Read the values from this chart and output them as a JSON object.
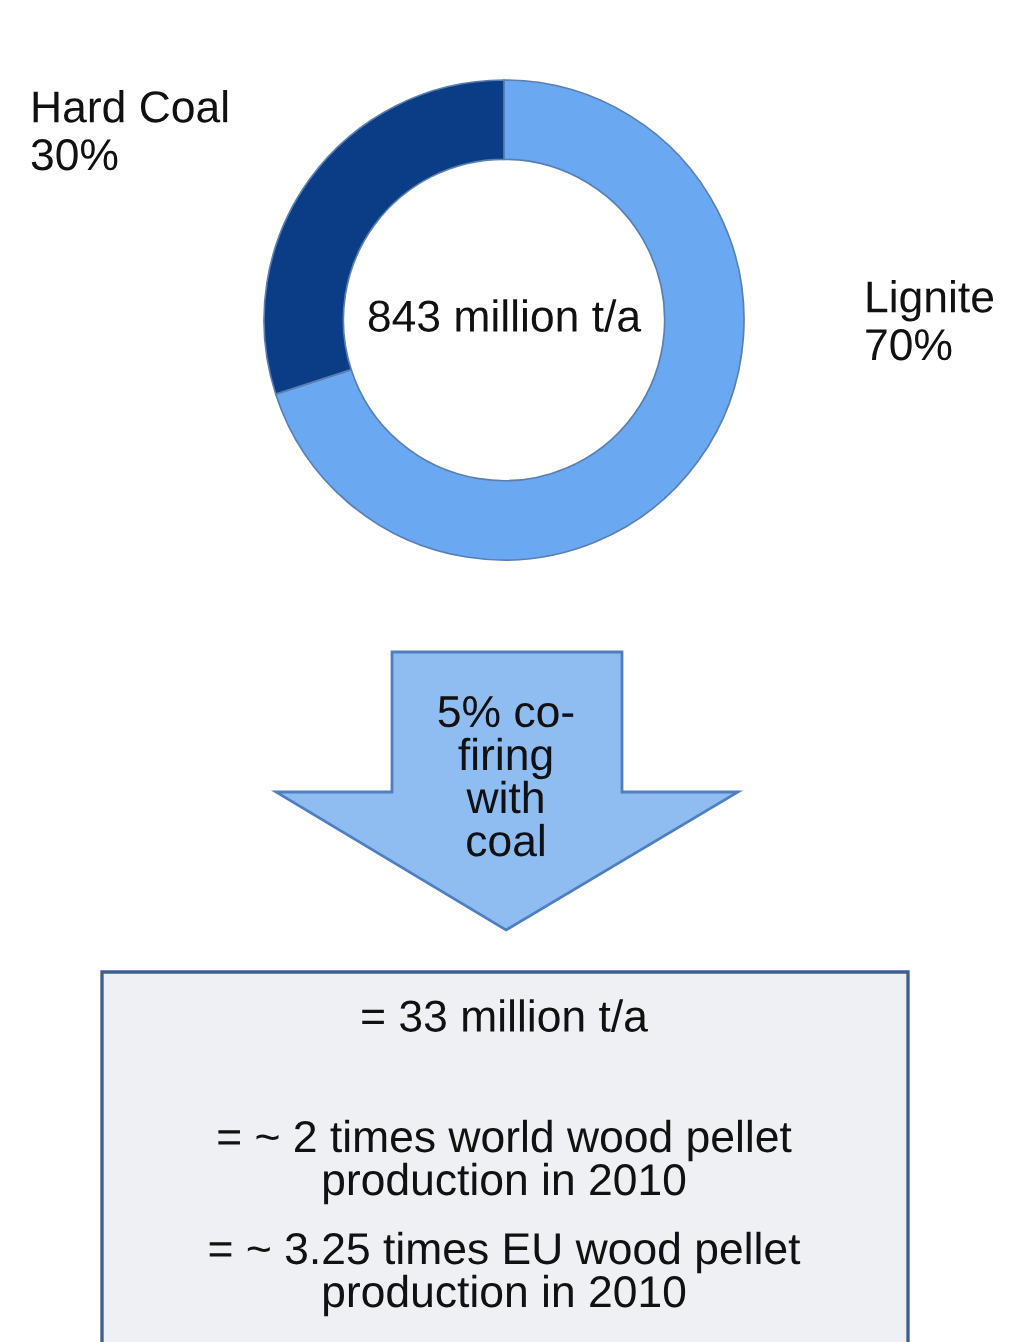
{
  "chart_data": {
    "type": "donut",
    "categories": [
      "Lignite",
      "Hard Coal"
    ],
    "values": [
      70,
      30
    ],
    "value_labels": [
      "70%",
      "30%"
    ],
    "colors": [
      "#6aa9f2",
      "#0b3d86"
    ],
    "annotations": [
      "843 million t/a",
      "5% co-\nfiring\nwith\ncoal",
      "= 33 million t/a",
      "= ~ 2 times world wood pellet\nproduction in 2010",
      "= ~ 3.25 times EU wood pellet\nproduction in 2010"
    ]
  }
}
